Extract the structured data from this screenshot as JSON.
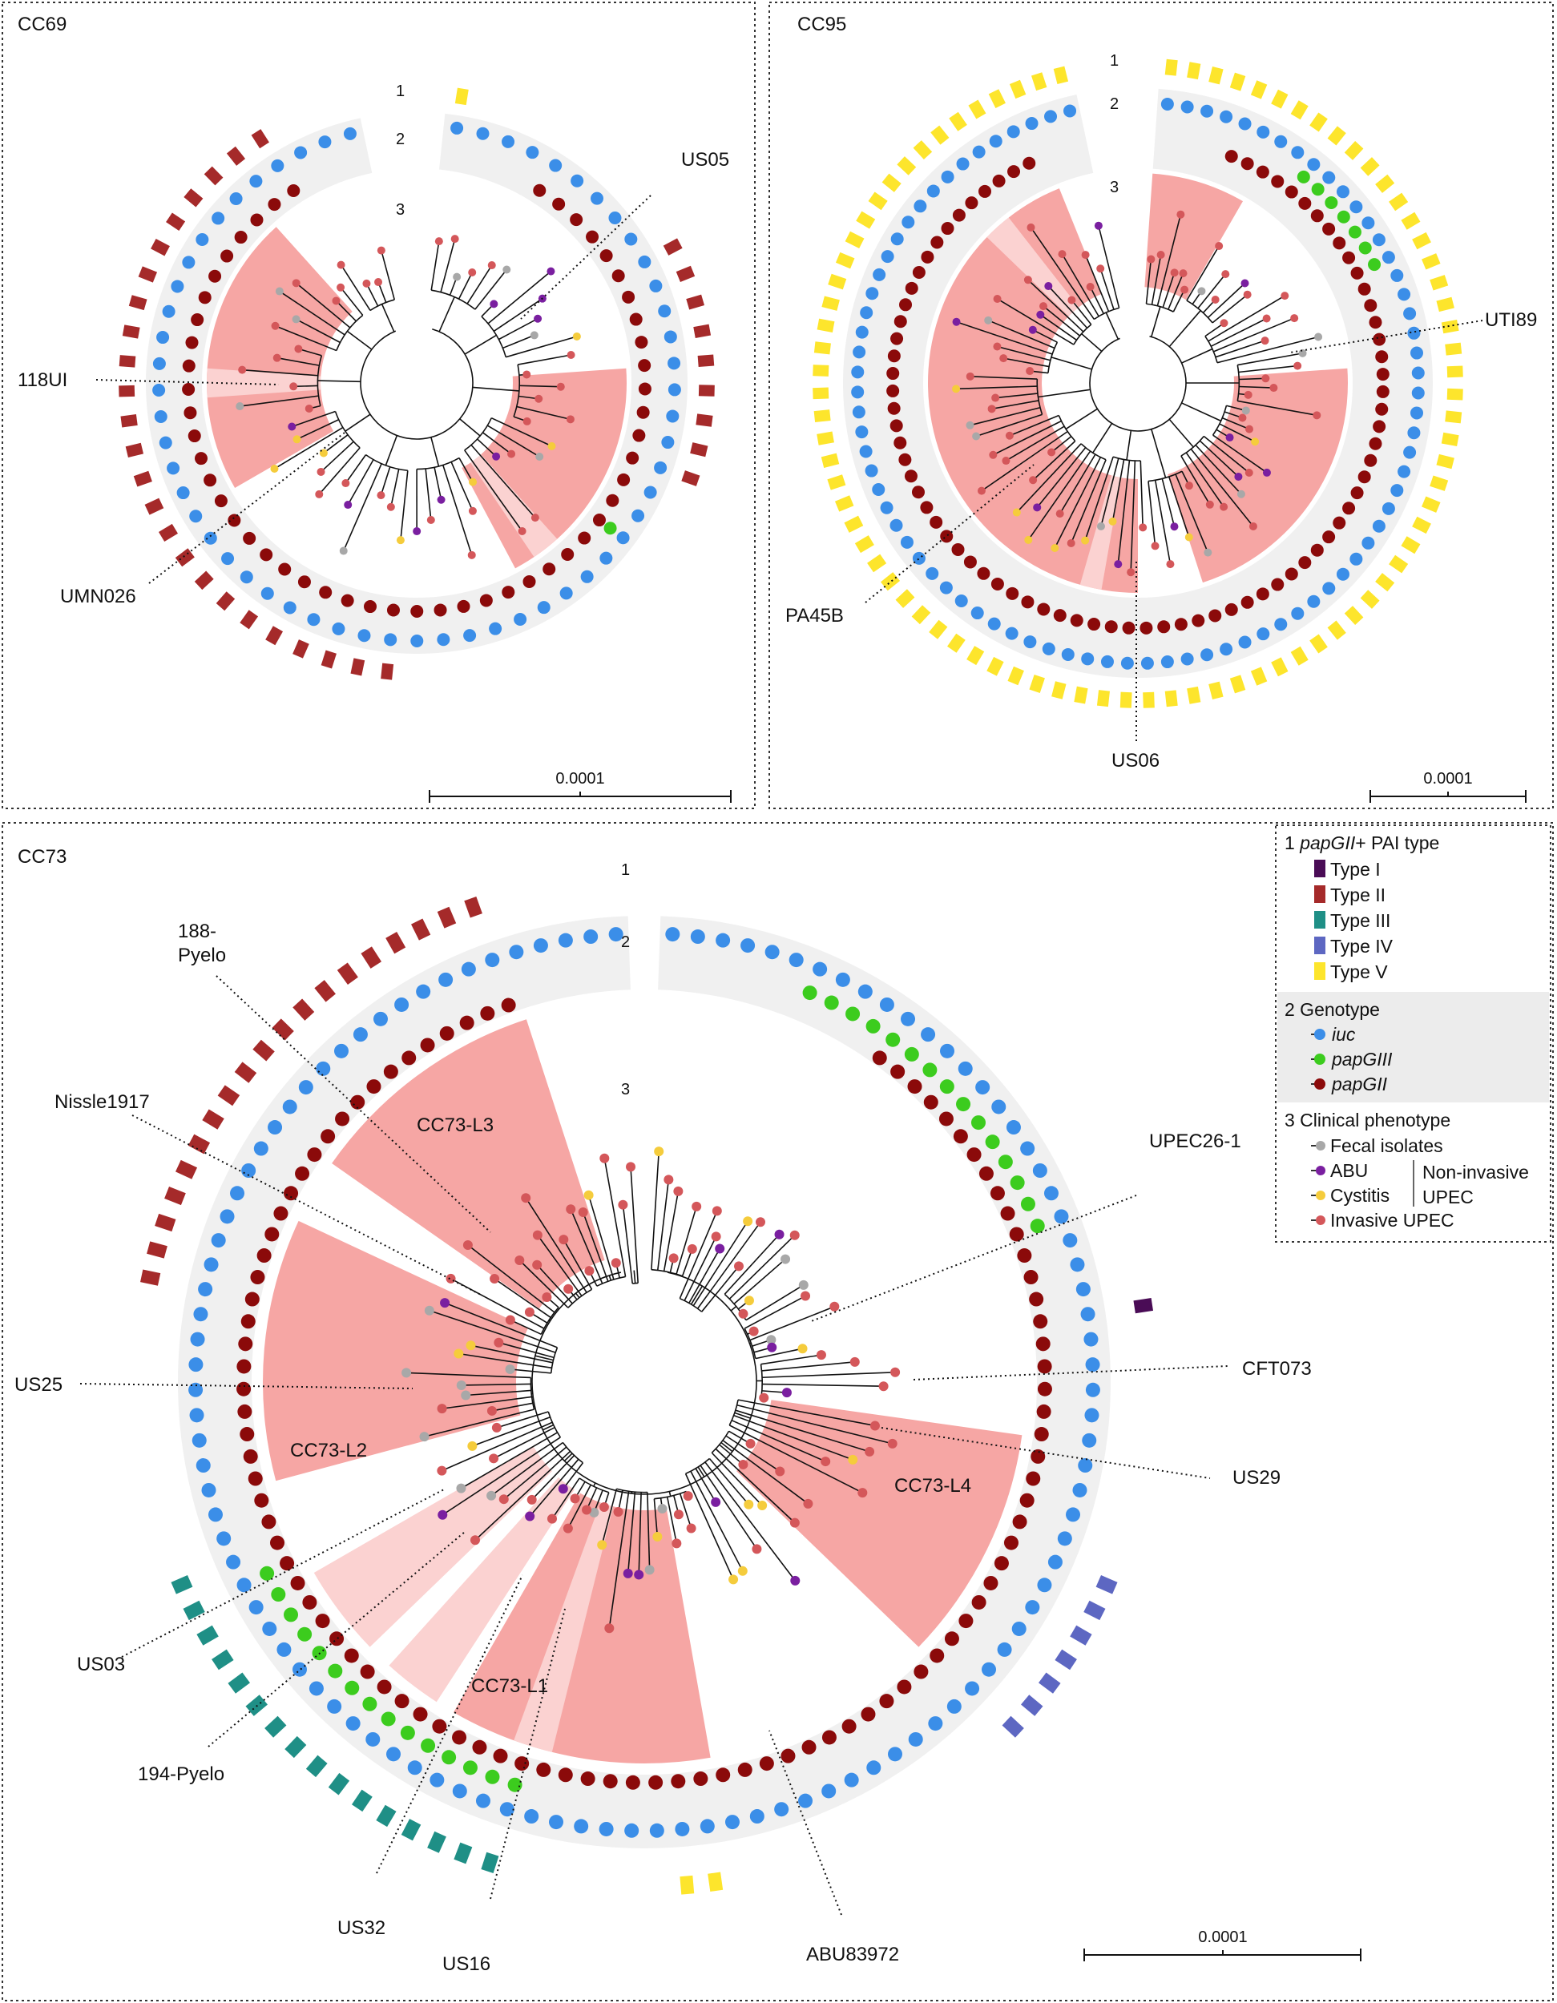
{
  "colors": {
    "ring_bg": "#f0f0f0",
    "clade": "#f6a6a4",
    "clade_light": "#fbd2d1",
    "iuc": "#3b8ee8",
    "papGIII": "#3ccc1e",
    "papGII": "#8b0a0a",
    "fecal": "#a8a8a8",
    "abu": "#7a1fa0",
    "cystitis": "#f5cc3c",
    "invasive": "#d4575a",
    "type_I": "#4a0c56",
    "type_II": "#a52a2a",
    "type_III": "#1f8f86",
    "type_IV": "#5d67c2",
    "type_V": "#fde52c"
  },
  "panels": {
    "cc69": {
      "title": "CC69",
      "ring_labels": [
        "1",
        "2",
        "3"
      ],
      "scale_label": "0.0001",
      "isolates": [
        "US05",
        "118UI",
        "UMN026"
      ]
    },
    "cc95": {
      "title": "CC95",
      "ring_labels": [
        "1",
        "2",
        "3"
      ],
      "scale_label": "0.0001",
      "isolates": [
        "UTI89",
        "PA45B",
        "US06"
      ]
    },
    "cc73": {
      "title": "CC73",
      "ring_labels": [
        "1",
        "2",
        "3"
      ],
      "scale_label": "0.0001",
      "lineages": [
        "CC73-L3",
        "CC73-L2",
        "CC73-L1",
        "CC73-L4"
      ],
      "isolates": [
        "188-",
        "Pyelo",
        "Nissle1917",
        "UPEC26-1",
        "CFT073",
        "US25",
        "US29",
        "US03",
        "194-Pyelo",
        "US32",
        "US16",
        "ABU83972"
      ]
    }
  },
  "legend": {
    "section1_num": "1",
    "section1_italic": "papGII",
    "section1_rest": "+ PAI type",
    "pai_types": [
      "Type I",
      "Type II",
      "Type III",
      "Type IV",
      "Type V"
    ],
    "section2_title": "2 Genotype",
    "genotypes": [
      "iuc",
      "papGIII",
      "papGII"
    ],
    "section3_title": "3 Clinical phenotype",
    "phenotypes": [
      "Fecal isolates",
      "ABU",
      "Cystitis",
      "Invasive UPEC"
    ],
    "bracket_line1": "Non-invasive",
    "bracket_line2": "UPEC"
  }
}
